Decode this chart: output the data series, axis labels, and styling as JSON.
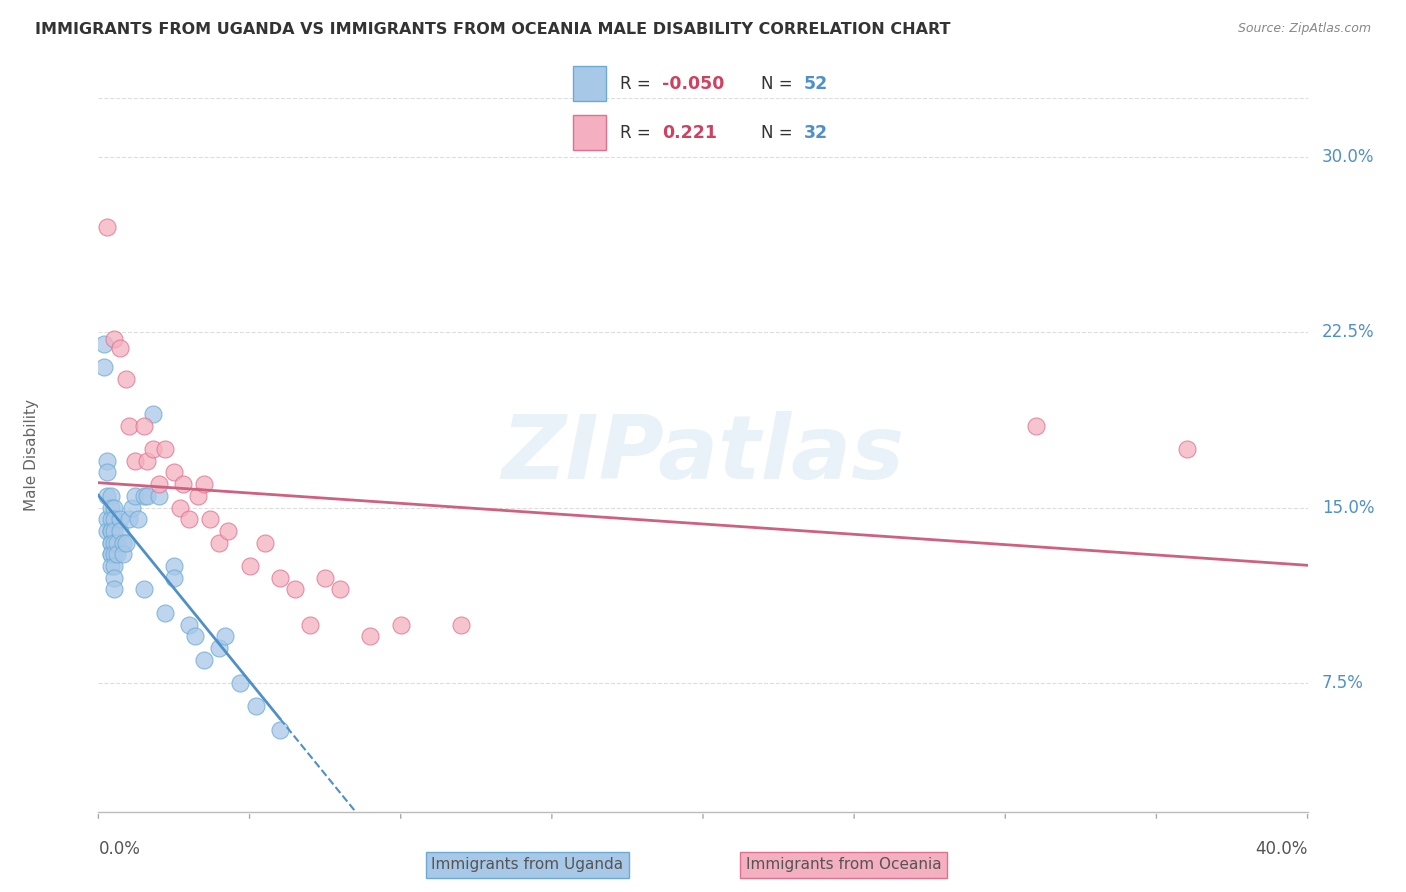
{
  "title": "IMMIGRANTS FROM UGANDA VS IMMIGRANTS FROM OCEANIA MALE DISABILITY CORRELATION CHART",
  "source": "Source: ZipAtlas.com",
  "ylabel": "Male Disability",
  "yticks": [
    0.075,
    0.15,
    0.225,
    0.3
  ],
  "ytick_labels": [
    "7.5%",
    "15.0%",
    "22.5%",
    "30.0%"
  ],
  "xmin": 0.0,
  "xmax": 0.4,
  "ymin": 0.02,
  "ymax": 0.325,
  "uganda_color": "#a8c8e8",
  "oceania_color": "#f4b0c0",
  "uganda_edge_color": "#6aaad4",
  "oceania_edge_color": "#e07090",
  "uganda_line_color": "#5090c8",
  "oceania_line_color": "#d06080",
  "watermark": "ZIPatlas",
  "legend_R_uganda": "-0.050",
  "legend_N_uganda": "52",
  "legend_R_oceania": "0.221",
  "legend_N_oceania": "32",
  "uganda_x": [
    0.002,
    0.002,
    0.003,
    0.003,
    0.003,
    0.003,
    0.003,
    0.004,
    0.004,
    0.004,
    0.004,
    0.004,
    0.004,
    0.004,
    0.004,
    0.004,
    0.004,
    0.005,
    0.005,
    0.005,
    0.005,
    0.005,
    0.005,
    0.005,
    0.005,
    0.006,
    0.006,
    0.007,
    0.007,
    0.008,
    0.008,
    0.009,
    0.01,
    0.011,
    0.012,
    0.013,
    0.015,
    0.015,
    0.016,
    0.018,
    0.02,
    0.022,
    0.025,
    0.025,
    0.03,
    0.032,
    0.035,
    0.04,
    0.042,
    0.047,
    0.052,
    0.06
  ],
  "uganda_y": [
    0.22,
    0.21,
    0.17,
    0.165,
    0.155,
    0.145,
    0.14,
    0.155,
    0.15,
    0.145,
    0.14,
    0.14,
    0.135,
    0.135,
    0.13,
    0.13,
    0.125,
    0.15,
    0.145,
    0.14,
    0.135,
    0.13,
    0.125,
    0.12,
    0.115,
    0.135,
    0.13,
    0.145,
    0.14,
    0.135,
    0.13,
    0.135,
    0.145,
    0.15,
    0.155,
    0.145,
    0.115,
    0.155,
    0.155,
    0.19,
    0.155,
    0.105,
    0.125,
    0.12,
    0.1,
    0.095,
    0.085,
    0.09,
    0.095,
    0.075,
    0.065,
    0.055
  ],
  "oceania_x": [
    0.003,
    0.005,
    0.007,
    0.009,
    0.01,
    0.012,
    0.015,
    0.016,
    0.018,
    0.02,
    0.022,
    0.025,
    0.027,
    0.028,
    0.03,
    0.033,
    0.035,
    0.037,
    0.04,
    0.043,
    0.05,
    0.055,
    0.06,
    0.065,
    0.07,
    0.075,
    0.08,
    0.09,
    0.1,
    0.12,
    0.31,
    0.36
  ],
  "oceania_y": [
    0.27,
    0.222,
    0.218,
    0.205,
    0.185,
    0.17,
    0.185,
    0.17,
    0.175,
    0.16,
    0.175,
    0.165,
    0.15,
    0.16,
    0.145,
    0.155,
    0.16,
    0.145,
    0.135,
    0.14,
    0.125,
    0.135,
    0.12,
    0.115,
    0.1,
    0.12,
    0.115,
    0.095,
    0.1,
    0.1,
    0.185,
    0.175
  ]
}
